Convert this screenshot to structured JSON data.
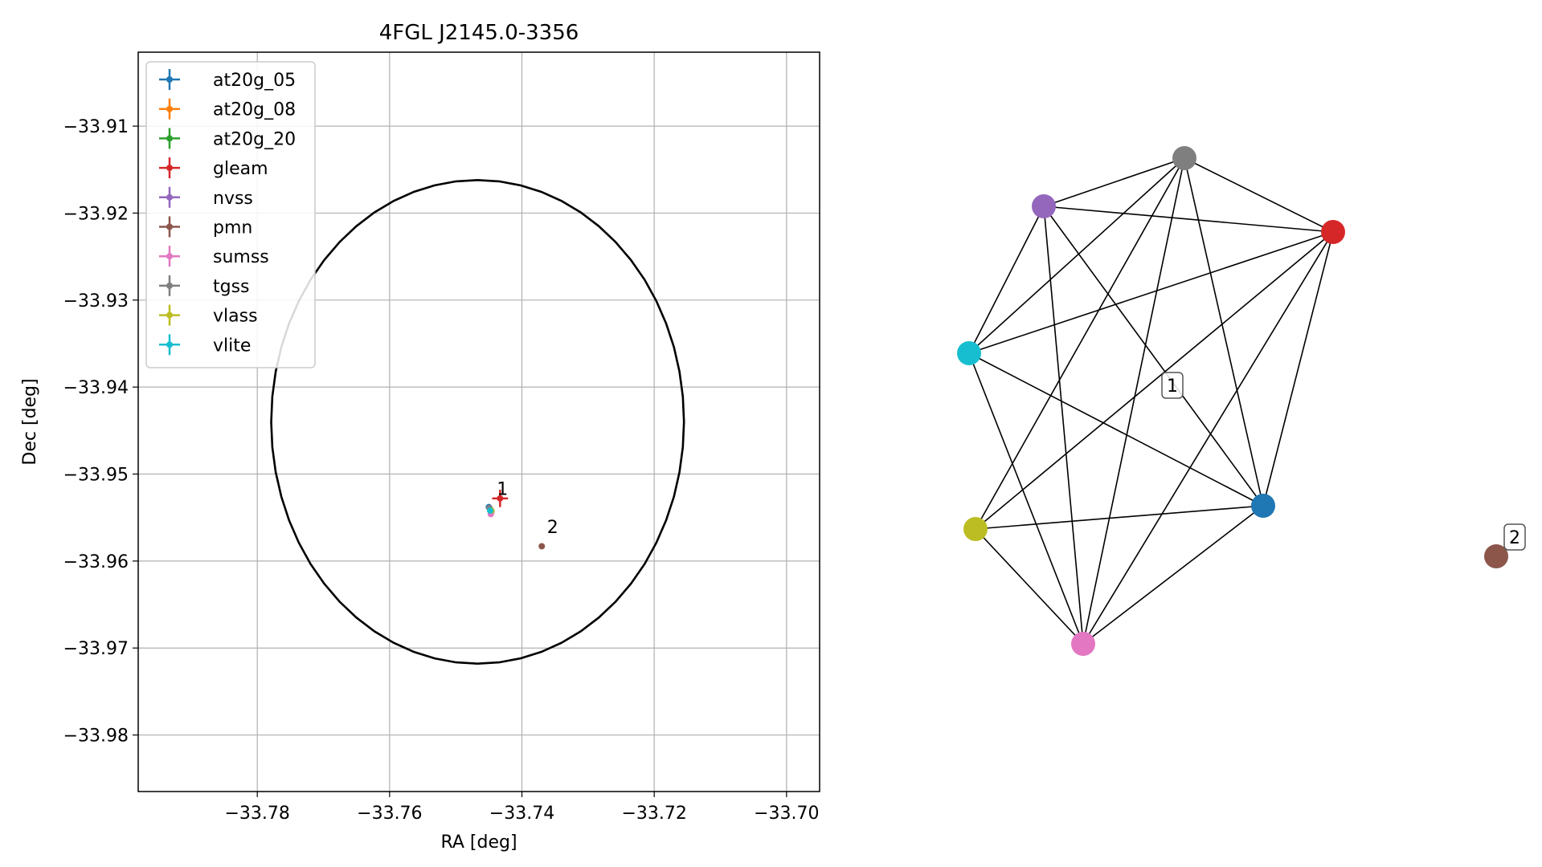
{
  "chart_data": [
    {
      "type": "scatter",
      "title": "4FGL J2145.0-3356",
      "xlabel": "RA [deg]",
      "ylabel": "Dec [deg]",
      "xlim": [
        -33.798,
        -33.695
      ],
      "ylim": [
        -33.9865,
        -33.9015
      ],
      "xticks": [
        -33.78,
        -33.76,
        -33.74,
        -33.72,
        -33.7
      ],
      "xtick_labels": [
        "−33.78",
        "−33.76",
        "−33.74",
        "−33.72",
        "−33.70"
      ],
      "yticks": [
        -33.91,
        -33.92,
        -33.93,
        -33.94,
        -33.95,
        -33.96,
        -33.97,
        -33.98
      ],
      "ytick_labels": [
        "−33.91",
        "−33.92",
        "−33.93",
        "−33.94",
        "−33.95",
        "−33.96",
        "−33.97",
        "−33.98"
      ],
      "grid": true,
      "legend_position": "top-left",
      "ellipse": {
        "center": [
          -33.7467,
          -33.944
        ],
        "semi_x": 0.0312,
        "semi_y": 0.0278,
        "polygon_points": 60,
        "color": "#000000"
      },
      "series": [
        {
          "name": "at20g_05",
          "color": "#1f77b4",
          "x": -33.745,
          "y": -33.9538,
          "xerr": 0.0002,
          "yerr": 0.0003
        },
        {
          "name": "at20g_08",
          "color": "#ff7f0e",
          "x": -33.7448,
          "y": -33.9541,
          "xerr": 0.0002,
          "yerr": 0.0003
        },
        {
          "name": "at20g_20",
          "color": "#2ca02c",
          "x": -33.7447,
          "y": -33.9542,
          "xerr": 0.0002,
          "yerr": 0.0003
        },
        {
          "name": "gleam",
          "color": "#d62728",
          "x": -33.7433,
          "y": -33.9528,
          "xerr": 0.0012,
          "yerr": 0.001
        },
        {
          "name": "nvss",
          "color": "#9467bd",
          "x": -33.7446,
          "y": -33.9543,
          "xerr": 0.0002,
          "yerr": 0.0002
        },
        {
          "name": "pmn",
          "color": "#8c564b",
          "x": -33.737,
          "y": -33.9583,
          "xerr": 0.0,
          "yerr": 0.0
        },
        {
          "name": "sumss",
          "color": "#e377c2",
          "x": -33.7447,
          "y": -33.9546,
          "xerr": 0.0004,
          "yerr": 0.0003
        },
        {
          "name": "tgss",
          "color": "#7f7f7f",
          "x": -33.7449,
          "y": -33.9539,
          "xerr": 0.0003,
          "yerr": 0.0003
        },
        {
          "name": "vlass",
          "color": "#bcbd22",
          "x": -33.7446,
          "y": -33.9542,
          "xerr": 0.0001,
          "yerr": 0.0001
        },
        {
          "name": "vlite",
          "color": "#17becf",
          "x": -33.7448,
          "y": -33.9542,
          "xerr": 0.0003,
          "yerr": 0.0003
        }
      ],
      "point_labels": [
        {
          "text": "1",
          "x": -33.7438,
          "y": -33.9524
        },
        {
          "text": "2",
          "x": -33.7362,
          "y": -33.9568
        }
      ]
    },
    {
      "type": "graph",
      "nodes": [
        {
          "name": "tgss",
          "color": "#7f7f7f"
        },
        {
          "name": "nvss",
          "color": "#9467bd"
        },
        {
          "name": "gleam",
          "color": "#d62728"
        },
        {
          "name": "vlite",
          "color": "#17becf"
        },
        {
          "name": "at20g_05",
          "color": "#1f77b4"
        },
        {
          "name": "vlass",
          "color": "#bcbd22"
        },
        {
          "name": "sumss",
          "color": "#e377c2"
        },
        {
          "name": "pmn",
          "color": "#8c564b"
        }
      ],
      "edges": [
        [
          "tgss",
          "nvss"
        ],
        [
          "tgss",
          "gleam"
        ],
        [
          "tgss",
          "vlite"
        ],
        [
          "tgss",
          "at20g_05"
        ],
        [
          "tgss",
          "vlass"
        ],
        [
          "tgss",
          "sumss"
        ],
        [
          "nvss",
          "gleam"
        ],
        [
          "nvss",
          "vlite"
        ],
        [
          "nvss",
          "at20g_05"
        ],
        [
          "nvss",
          "sumss"
        ],
        [
          "gleam",
          "vlite"
        ],
        [
          "gleam",
          "at20g_05"
        ],
        [
          "gleam",
          "vlass"
        ],
        [
          "gleam",
          "sumss"
        ],
        [
          "vlite",
          "at20g_05"
        ],
        [
          "vlite",
          "sumss"
        ],
        [
          "at20g_05",
          "vlass"
        ],
        [
          "at20g_05",
          "sumss"
        ],
        [
          "vlass",
          "sumss"
        ]
      ],
      "group_labels": [
        {
          "text": "1"
        },
        {
          "text": "2"
        }
      ]
    }
  ]
}
